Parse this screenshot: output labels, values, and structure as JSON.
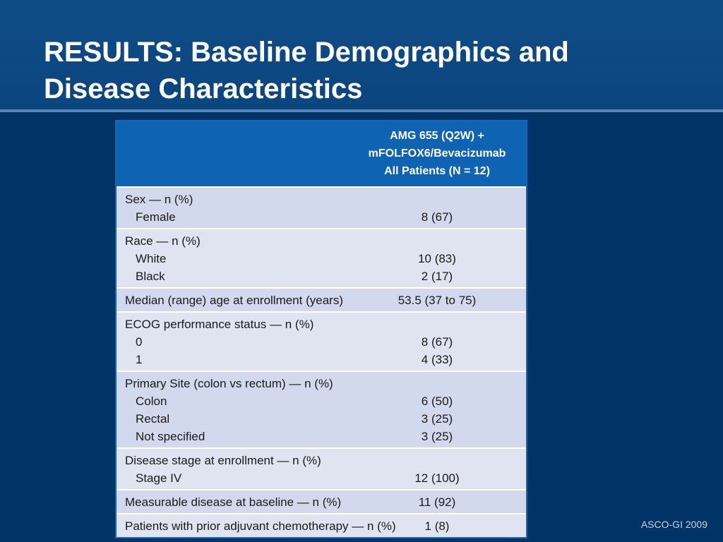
{
  "slide": {
    "title_line1": "RESULTS: Baseline Demographics and",
    "title_line2": "Disease Characteristics",
    "footer": "ASCO-GI 2009"
  },
  "table": {
    "header": [
      "AMG 655 (Q2W) +",
      "mFOLFOX6/Bevacizumab",
      "All Patients (N = 12)"
    ],
    "groups": [
      {
        "rows": [
          {
            "label": "Sex — n (%)",
            "value": ""
          },
          {
            "label": "Female",
            "value": "8 (67)"
          }
        ]
      },
      {
        "rows": [
          {
            "label": "Race — n (%)",
            "value": ""
          },
          {
            "label": "White",
            "value": "10 (83)"
          },
          {
            "label": "Black",
            "value": "2 (17)"
          }
        ]
      },
      {
        "rows": [
          {
            "label": "Median (range) age at enrollment (years)",
            "value": "53.5 (37 to 75)"
          }
        ]
      },
      {
        "rows": [
          {
            "label": "ECOG performance status — n (%)",
            "value": ""
          },
          {
            "label": "0",
            "value": "8 (67)"
          },
          {
            "label": "1",
            "value": "4 (33)"
          }
        ]
      },
      {
        "rows": [
          {
            "label": "Primary Site (colon vs rectum) — n (%)",
            "value": ""
          },
          {
            "label": "Colon",
            "value": "6 (50)"
          },
          {
            "label": "Rectal",
            "value": "3 (25)"
          },
          {
            "label": "Not specified",
            "value": "3 (25)"
          }
        ]
      },
      {
        "rows": [
          {
            "label": "Disease stage at enrollment — n (%)",
            "value": ""
          },
          {
            "label": "Stage IV",
            "value": "12 (100)"
          }
        ]
      },
      {
        "rows": [
          {
            "label": "Measurable disease at baseline — n (%)",
            "value": "11 (92)"
          }
        ]
      },
      {
        "rows": [
          {
            "label": "Patients with prior adjuvant chemotherapy — n (%)",
            "value": "1 (8)"
          }
        ]
      }
    ]
  }
}
